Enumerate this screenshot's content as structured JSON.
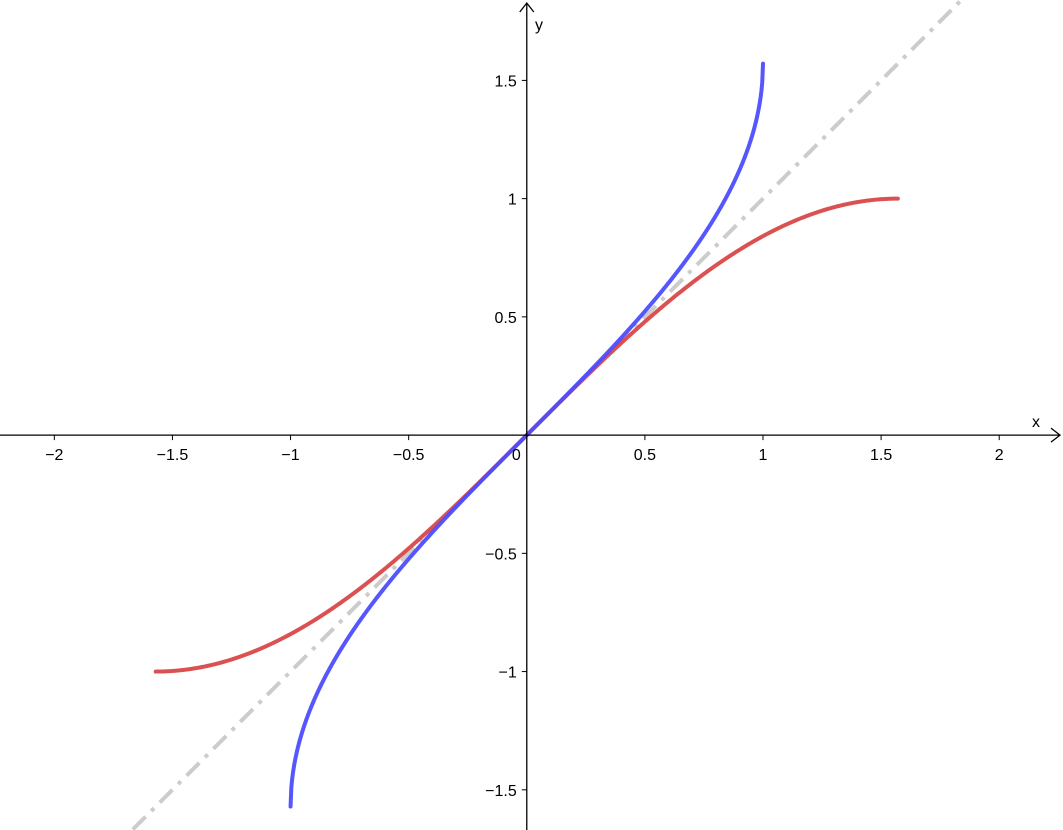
{
  "chart_data": {
    "type": "line",
    "xlabel": "x",
    "ylabel": "y",
    "xlim": [
      -2.23,
      2.27
    ],
    "ylim": [
      -1.67,
      1.84
    ],
    "grid": false,
    "x_ticks": [
      "−2",
      "−1.5",
      "−1",
      "−0.5",
      "0",
      "0.5",
      "1",
      "1.5",
      "2"
    ],
    "x_tick_values": [
      -2,
      -1.5,
      -1,
      -0.5,
      0,
      0.5,
      1,
      1.5,
      2
    ],
    "y_ticks": [
      "1.5",
      "1",
      "0.5",
      "−0.5",
      "−1",
      "−1.5"
    ],
    "y_tick_values": [
      1.5,
      1,
      0.5,
      -0.5,
      -1,
      -1.5
    ],
    "series": [
      {
        "function": "y = x",
        "domain": [
          -2.23,
          2.27
        ],
        "color": "#cccccc",
        "style": "dash-dot"
      },
      {
        "function": "y = sin(x)",
        "domain": [
          -1.5708,
          1.5708
        ],
        "color": "#d94848",
        "style": "solid"
      },
      {
        "function": "y = arcsin(x)",
        "domain": [
          -1,
          1
        ],
        "color": "#4d4dff",
        "style": "solid"
      }
    ]
  }
}
